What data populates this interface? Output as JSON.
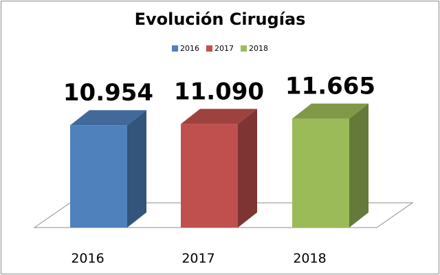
{
  "chart_data": {
    "type": "bar",
    "title": "Evolución Cirugías",
    "categories": [
      "2016",
      "2017",
      "2018"
    ],
    "series": [
      {
        "name": "2016",
        "values": [
          10954,
          null,
          null
        ]
      },
      {
        "name": "2017",
        "values": [
          null,
          11090,
          null
        ]
      },
      {
        "name": "2018",
        "values": [
          null,
          null,
          11665
        ]
      }
    ],
    "values": [
      10954,
      11090,
      11665
    ],
    "data_labels": [
      "10.954",
      "11.090",
      "11.665"
    ],
    "legend": [
      "2016",
      "2017",
      "2018"
    ],
    "legend_position": "top",
    "colors": [
      "#4f81bd",
      "#c0504d",
      "#9bbb59"
    ],
    "ylim": [
      0,
      14800
    ],
    "grid": false,
    "style": "3d-columns"
  }
}
